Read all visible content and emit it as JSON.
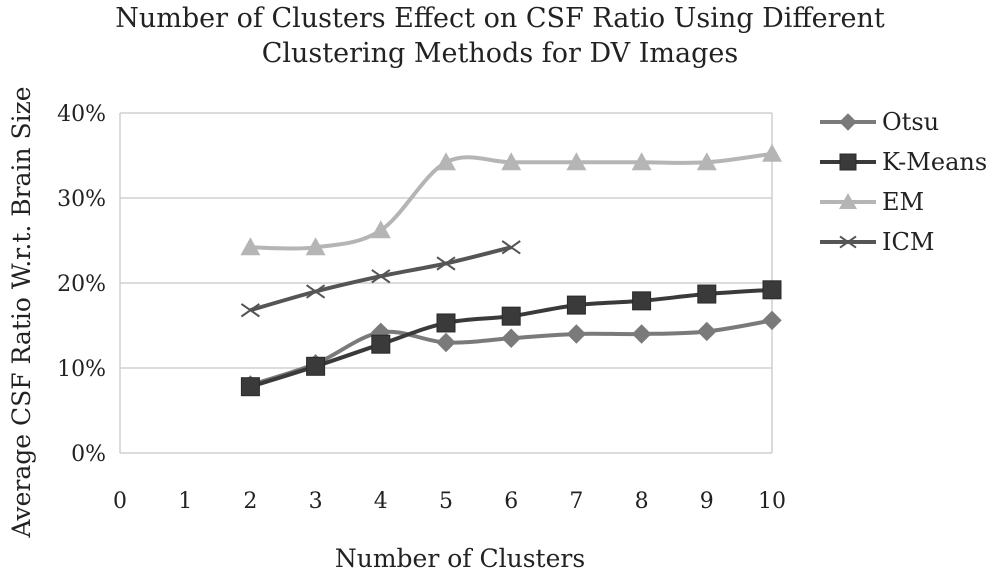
{
  "chart_data": {
    "type": "line",
    "title_lines": [
      "Number of Clusters Effect on CSF Ratio Using Different",
      "Clustering Methods for DV Images"
    ],
    "xlabel": "Number of Clusters",
    "ylabel": "Average CSF Ratio W.r.t. Brain Size",
    "x_ticks": [
      "0",
      "1",
      "2",
      "3",
      "4",
      "5",
      "6",
      "7",
      "8",
      "9",
      "10"
    ],
    "y_ticks": [
      "0%",
      "10%",
      "20%",
      "30%",
      "40%"
    ],
    "xlim": [
      0,
      10
    ],
    "ylim": [
      0,
      40
    ],
    "y_unit": "%",
    "grid": "horizontal",
    "legend_position": "right",
    "x": [
      2,
      3,
      4,
      5,
      6,
      7,
      8,
      9,
      10
    ],
    "series": [
      {
        "name": "Otsu",
        "marker": "diamond",
        "color": "#7a7a7a",
        "values": [
          8.0,
          10.5,
          14.2,
          13.0,
          13.5,
          14.0,
          14.0,
          14.3,
          15.6
        ]
      },
      {
        "name": "K-Means",
        "marker": "square",
        "color": "#3a3a3a",
        "values": [
          7.8,
          10.2,
          12.8,
          15.3,
          16.1,
          17.4,
          17.9,
          18.7,
          19.2
        ]
      },
      {
        "name": "EM",
        "marker": "triangle",
        "color": "#b5b5b5",
        "values": [
          24.2,
          24.2,
          26.2,
          34.2,
          34.2,
          34.2,
          34.2,
          34.2,
          35.2
        ]
      },
      {
        "name": "ICM",
        "marker": "x",
        "color": "#555555",
        "values": [
          16.8,
          19.0,
          20.8,
          22.3,
          24.2,
          null,
          null,
          null,
          null
        ]
      }
    ]
  }
}
